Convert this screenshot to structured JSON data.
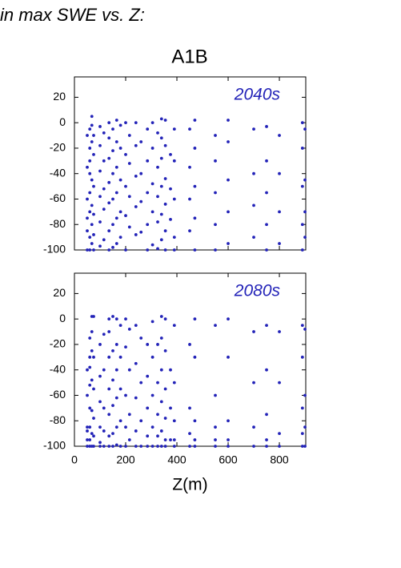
{
  "title": "in max SWE vs. Z:",
  "subtitle": "A1B",
  "chart_data": [
    {
      "type": "scatter",
      "annotation": "2040s",
      "color": "#2323b8",
      "xlim": [
        0,
        903
      ],
      "ylim": [
        -100,
        36
      ],
      "xticks": [
        0,
        200,
        400,
        600,
        800
      ],
      "yticks": [
        -100,
        -80,
        -60,
        -40,
        -20,
        0,
        20
      ],
      "x": [
        50,
        50,
        50,
        50,
        50,
        50,
        60,
        60,
        60,
        60,
        60,
        60,
        60,
        60,
        68,
        68,
        68,
        68,
        68,
        68,
        68,
        75,
        75,
        75,
        75,
        75,
        75,
        100,
        100,
        100,
        100,
        100,
        100,
        115,
        115,
        115,
        115,
        115,
        135,
        135,
        135,
        135,
        135,
        135,
        135,
        150,
        150,
        150,
        150,
        150,
        150,
        165,
        165,
        165,
        165,
        165,
        165,
        180,
        180,
        180,
        180,
        180,
        200,
        200,
        200,
        200,
        200,
        215,
        215,
        215,
        215,
        240,
        240,
        240,
        240,
        240,
        260,
        260,
        260,
        260,
        285,
        285,
        285,
        285,
        285,
        305,
        305,
        305,
        305,
        305,
        325,
        325,
        325,
        325,
        325,
        340,
        340,
        340,
        340,
        340,
        340,
        355,
        355,
        355,
        355,
        355,
        355,
        375,
        375,
        375,
        390,
        390,
        390,
        390,
        390,
        450,
        450,
        450,
        450,
        470,
        470,
        470,
        470,
        470,
        550,
        550,
        550,
        550,
        550,
        600,
        600,
        600,
        600,
        600,
        700,
        700,
        700,
        700,
        750,
        750,
        750,
        750,
        750,
        800,
        800,
        800,
        800,
        890,
        890,
        890,
        890,
        890,
        900,
        900,
        900,
        900
      ],
      "values": [
        -10,
        -35,
        -60,
        -85,
        -100,
        -75,
        -5,
        -20,
        -40,
        -55,
        -70,
        -90,
        -100,
        -30,
        5,
        -2,
        -15,
        -45,
        -65,
        -80,
        -95,
        -10,
        -25,
        -50,
        -72,
        -88,
        -100,
        -3,
        -18,
        -38,
        -58,
        -78,
        -97,
        -8,
        -30,
        -52,
        -68,
        -92,
        0,
        -12,
        -28,
        -47,
        -63,
        -85,
        -100,
        -5,
        -22,
        -40,
        -60,
        -80,
        -98,
        2,
        -15,
        -35,
        -55,
        -75,
        -95,
        -2,
        -20,
        -45,
        -70,
        -90,
        0,
        -25,
        -50,
        -73,
        -100,
        -10,
        -32,
        -58,
        -82,
        0,
        -18,
        -42,
        -66,
        -88,
        -15,
        -40,
        -62,
        -86,
        -5,
        -30,
        -55,
        -80,
        -100,
        0,
        -20,
        -48,
        -70,
        -96,
        -8,
        -35,
        -58,
        -78,
        -99,
        3,
        -12,
        -28,
        -50,
        -72,
        -92,
        2,
        -18,
        -44,
        -64,
        -85,
        -100,
        -25,
        -52,
        -76,
        -5,
        -30,
        -60,
        -90,
        -100,
        -5,
        -35,
        -60,
        -85,
        2,
        -20,
        -50,
        -75,
        -100,
        -10,
        -30,
        -55,
        -80,
        -100,
        2,
        -15,
        -45,
        -70,
        -95,
        -5,
        -40,
        -65,
        -90,
        -3,
        -30,
        -55,
        -80,
        -100,
        -10,
        -40,
        -70,
        -95,
        0,
        -20,
        -50,
        -80,
        -100,
        -5,
        -45,
        -70,
        -90
      ]
    },
    {
      "type": "scatter",
      "annotation": "2080s",
      "color": "#2323b8",
      "xlabel": "Z(m)",
      "xlim": [
        0,
        903
      ],
      "ylim": [
        -100,
        36
      ],
      "xticks": [
        0,
        200,
        400,
        600,
        800
      ],
      "yticks": [
        -100,
        -80,
        -60,
        -40,
        -20,
        0,
        20
      ],
      "x": [
        50,
        50,
        50,
        50,
        50,
        50,
        60,
        60,
        60,
        60,
        60,
        60,
        60,
        60,
        68,
        68,
        68,
        68,
        68,
        68,
        68,
        75,
        75,
        75,
        75,
        75,
        75,
        100,
        100,
        100,
        100,
        100,
        100,
        115,
        115,
        115,
        115,
        115,
        135,
        135,
        135,
        135,
        135,
        135,
        135,
        150,
        150,
        150,
        150,
        150,
        150,
        165,
        165,
        165,
        165,
        165,
        165,
        180,
        180,
        180,
        180,
        180,
        200,
        200,
        200,
        200,
        200,
        215,
        215,
        215,
        215,
        240,
        240,
        240,
        240,
        240,
        260,
        260,
        260,
        260,
        285,
        285,
        285,
        285,
        285,
        305,
        305,
        305,
        305,
        305,
        325,
        325,
        325,
        325,
        325,
        340,
        340,
        340,
        340,
        340,
        340,
        355,
        355,
        355,
        355,
        355,
        355,
        375,
        375,
        375,
        390,
        390,
        390,
        390,
        390,
        450,
        450,
        450,
        450,
        470,
        470,
        470,
        470,
        470,
        550,
        550,
        550,
        550,
        550,
        600,
        600,
        600,
        600,
        600,
        700,
        700,
        700,
        700,
        750,
        750,
        750,
        750,
        750,
        800,
        800,
        800,
        800,
        890,
        890,
        890,
        890,
        890,
        900,
        900,
        900,
        900
      ],
      "values": [
        -40,
        -60,
        -85,
        -95,
        -100,
        -88,
        -15,
        -38,
        -52,
        -70,
        -85,
        -95,
        -100,
        -30,
        2,
        -10,
        -25,
        -48,
        -72,
        -90,
        -100,
        2,
        -30,
        -55,
        -78,
        -92,
        -100,
        -20,
        -45,
        -65,
        -85,
        -97,
        -100,
        -12,
        -40,
        -70,
        -88,
        -100,
        0,
        -10,
        -30,
        -55,
        -75,
        -92,
        -100,
        2,
        -25,
        -48,
        -68,
        -90,
        -100,
        0,
        -20,
        -40,
        -62,
        -85,
        -99,
        -5,
        -30,
        -55,
        -80,
        -100,
        0,
        -22,
        -60,
        -85,
        -100,
        -8,
        -40,
        -75,
        -95,
        -5,
        -35,
        -62,
        -88,
        -100,
        -15,
        -50,
        -80,
        -100,
        -20,
        -45,
        -70,
        -92,
        -100,
        -2,
        -30,
        -60,
        -85,
        -100,
        -20,
        -50,
        -75,
        -92,
        -100,
        2,
        -15,
        -40,
        -65,
        -88,
        -100,
        0,
        -25,
        -55,
        -78,
        -95,
        -100,
        -40,
        -70,
        -95,
        -5,
        -50,
        -80,
        -95,
        -100,
        -20,
        -70,
        -90,
        -100,
        0,
        -30,
        -80,
        -95,
        -100,
        -5,
        -60,
        -85,
        -95,
        -100,
        0,
        -30,
        -80,
        -95,
        -100,
        -10,
        -50,
        -85,
        -100,
        -5,
        -40,
        -75,
        -95,
        -100,
        -10,
        -50,
        -90,
        -100,
        -5,
        -30,
        -70,
        -90,
        -100,
        -8,
        -60,
        -85,
        -100
      ]
    }
  ]
}
